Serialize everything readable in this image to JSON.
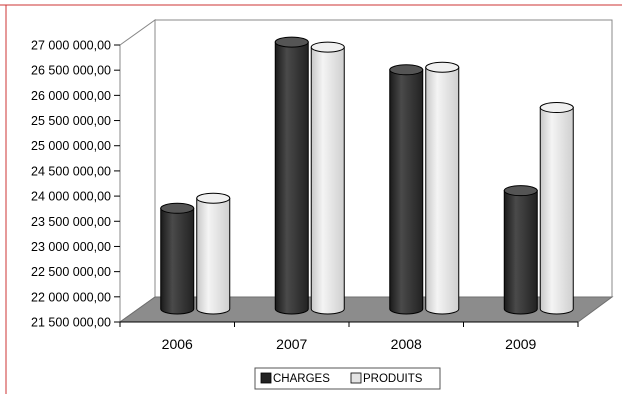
{
  "chart_data": {
    "type": "bar",
    "style": "3d-cylinder",
    "categories": [
      "2006",
      "2007",
      "2008",
      "2009"
    ],
    "series": [
      {
        "name": "CHARGES",
        "color": "#333333",
        "values": [
          23500000,
          26800000,
          26250000,
          23850000
        ]
      },
      {
        "name": "PRODUITS",
        "color": "#e0e0e0",
        "values": [
          23700000,
          26700000,
          26300000,
          25500000
        ]
      }
    ],
    "ylim": [
      21500000,
      27000000
    ],
    "y_ticks": [
      21500000,
      22000000,
      22500000,
      23000000,
      23500000,
      24000000,
      24500000,
      25000000,
      25500000,
      26000000,
      26500000,
      27000000
    ],
    "y_tick_labels": [
      "21 500 000,00",
      "22 000 000,00",
      "22 500 000,00",
      "23 000 000,00",
      "23 500 000,00",
      "24 000 000,00",
      "24 500 000,00",
      "25 000 000,00",
      "25 500 000,00",
      "26 000 000,00",
      "26 500 000,00",
      "27 000 000,00"
    ],
    "legend_position": "bottom",
    "grid": false,
    "frame_color": "#cc3333",
    "floor_color": "#8c8c8c"
  }
}
